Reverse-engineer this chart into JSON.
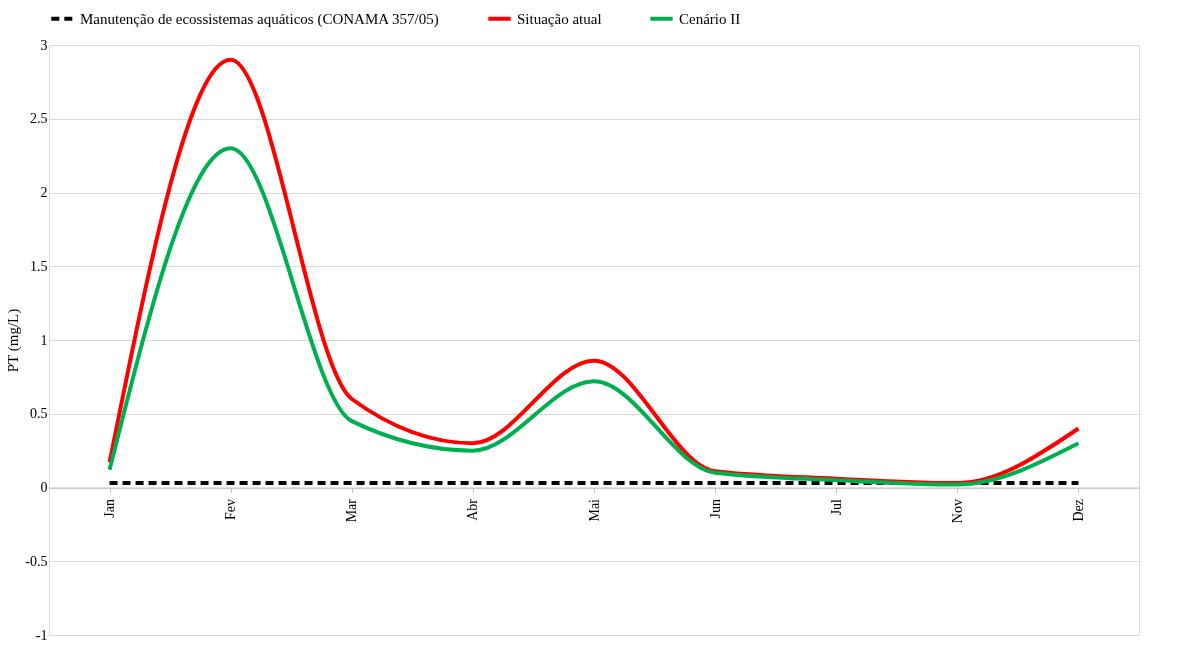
{
  "chart_data": {
    "type": "line",
    "ylabel": "PT (mg/L)",
    "categories": [
      "Jan",
      "Fev",
      "Mar",
      "Abr",
      "Mai",
      "Jun",
      "Jul",
      "Nov",
      "Dez"
    ],
    "series": [
      {
        "name": "Manutenção de ecossistemas aquáticos (CONAMA 357/05)",
        "color": "#000000",
        "line_style": "dashed",
        "values": [
          0.03,
          0.03,
          0.03,
          0.03,
          0.03,
          0.03,
          0.03,
          0.03,
          0.03
        ]
      },
      {
        "name": "Situação atual",
        "color": "#ff0000",
        "line_style": "solid",
        "values": [
          0.17,
          2.9,
          0.6,
          0.3,
          0.86,
          0.11,
          0.06,
          0.03,
          0.4
        ]
      },
      {
        "name": "Cenário II",
        "color": "#00b050",
        "line_style": "solid",
        "values": [
          0.12,
          2.3,
          0.45,
          0.25,
          0.72,
          0.1,
          0.05,
          0.02,
          0.3
        ]
      }
    ],
    "ylim": [
      -1,
      3
    ],
    "yticks": [
      -1,
      -0.5,
      0,
      0.5,
      1,
      1.5,
      2,
      2.5,
      3
    ],
    "grid": "y",
    "legend": "top",
    "marker": "none"
  }
}
